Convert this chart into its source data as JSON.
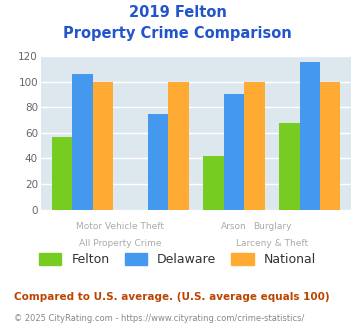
{
  "title_line1": "2019 Felton",
  "title_line2": "Property Crime Comparison",
  "groups": [
    {
      "label": "Felton",
      "color": "#77cc22",
      "values": [
        57,
        0,
        42,
        68
      ]
    },
    {
      "label": "Delaware",
      "color": "#4499ee",
      "values": [
        106,
        75,
        90,
        115
      ]
    },
    {
      "label": "National",
      "color": "#ffaa33",
      "values": [
        100,
        100,
        100,
        100
      ]
    }
  ],
  "x_positions": [
    0,
    1,
    2,
    3
  ],
  "top_labels": [
    "",
    "Motor Vehicle Theft",
    "Arson",
    "Burglary"
  ],
  "bottom_labels": [
    "All Property Crime",
    "",
    "",
    "Larceny & Theft"
  ],
  "ylim": [
    0,
    120
  ],
  "yticks": [
    0,
    20,
    40,
    60,
    80,
    100,
    120
  ],
  "bar_width": 0.27,
  "plot_bg": "#dce8ee",
  "grid_color": "#ffffff",
  "title_color": "#2255cc",
  "footnote1": "Compared to U.S. average. (U.S. average equals 100)",
  "footnote2": "© 2025 CityRating.com - https://www.cityrating.com/crime-statistics/",
  "footnote1_color": "#bb4400",
  "footnote2_color": "#888888",
  "label_color": "#aaaaaa"
}
